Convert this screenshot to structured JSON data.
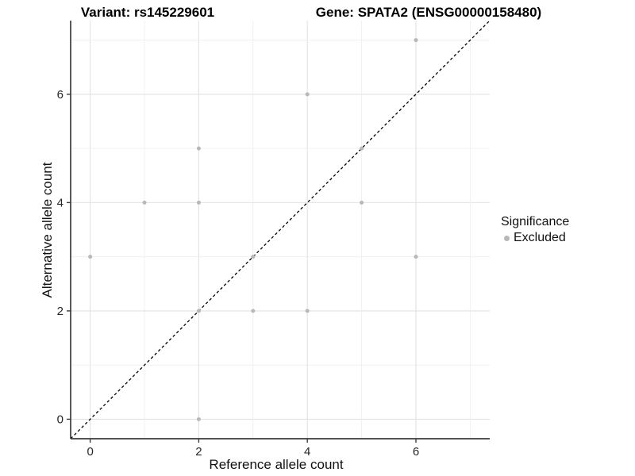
{
  "figure": {
    "title_left": "Variant: rs145229601",
    "title_right": "Gene: SPATA2 (ENSG00000158480)"
  },
  "axes": {
    "x_label": "Reference allele count",
    "y_label": "Alternative allele count"
  },
  "legend": {
    "title": "Significance",
    "items": [
      {
        "label": "Excluded",
        "color": "#b8b8b8"
      }
    ]
  },
  "colors": {
    "point": "#b8b8b8",
    "grid_major": "#e2e2e2",
    "grid_minor": "#efefef",
    "axis": "#3c3c3c",
    "tick_text": "#262626",
    "reference_line": "#000000",
    "background": "#ffffff"
  },
  "chart_data": {
    "type": "scatter",
    "title": "Variant: rs145229601 — Gene: SPATA2 (ENSG00000158480)",
    "xlabel": "Reference allele count",
    "ylabel": "Alternative allele count",
    "xlim": [
      -0.36,
      7.36
    ],
    "ylim": [
      -0.36,
      7.36
    ],
    "x_ticks": [
      0,
      2,
      4,
      6
    ],
    "y_ticks": [
      0,
      2,
      4,
      6
    ],
    "grid_lines": [
      0,
      1,
      2,
      3,
      4,
      5,
      6,
      7
    ],
    "grid": "on",
    "legend_title": "Significance",
    "legend_position": "right",
    "series": [
      {
        "name": "Excluded",
        "color": "#b8b8b8",
        "points": [
          [
            0,
            3
          ],
          [
            1,
            4
          ],
          [
            2,
            0
          ],
          [
            2,
            2
          ],
          [
            2,
            4
          ],
          [
            2,
            5
          ],
          [
            3,
            2
          ],
          [
            3,
            3
          ],
          [
            4,
            2
          ],
          [
            4,
            6
          ],
          [
            5,
            4
          ],
          [
            5,
            5
          ],
          [
            6,
            3
          ],
          [
            6,
            7
          ]
        ]
      }
    ],
    "reference_line": {
      "slope": 1,
      "intercept": 0,
      "style": "dashed",
      "color": "#000000"
    }
  }
}
